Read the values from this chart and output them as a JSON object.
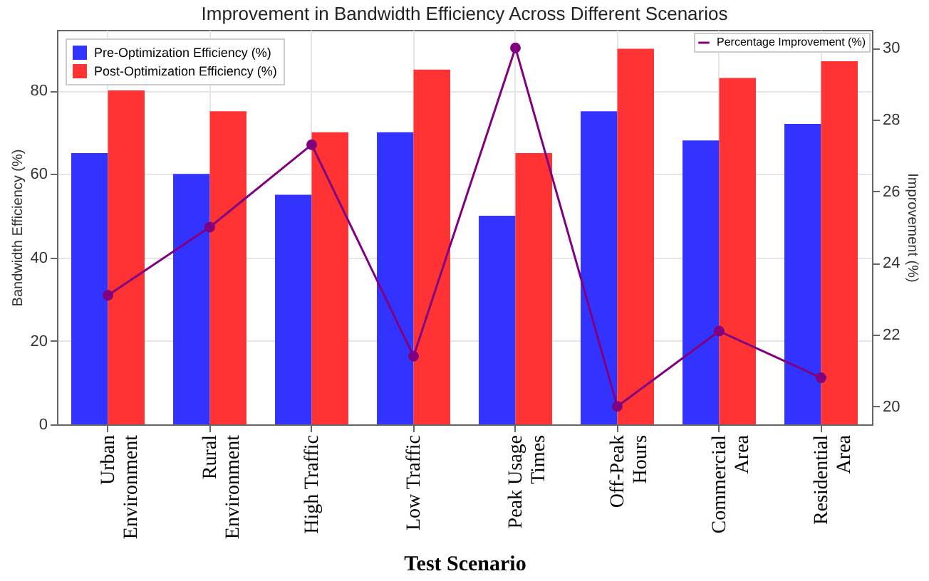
{
  "chart_data": {
    "type": "bar",
    "title": "Improvement in Bandwidth Efficiency Across Different Scenarios",
    "xlabel": "Test Scenario",
    "ylabel": "Bandwidth Efficiency (%)",
    "y2label": "Improvement (%)",
    "categories": [
      "Urban Environment",
      "Rural Environment",
      "High Traffic",
      "Low Traffic",
      "Peak Usage Times",
      "Off-Peak Hours",
      "Commercial Area",
      "Residential Area"
    ],
    "series": [
      {
        "name": "Pre-Optimization Efficiency (%)",
        "color": "#3333ff",
        "values": [
          65,
          60,
          55,
          70,
          50,
          75,
          68,
          72
        ]
      },
      {
        "name": "Post-Optimization Efficiency (%)",
        "color": "#ff3333",
        "values": [
          80,
          75,
          70,
          85,
          65,
          90,
          83,
          87
        ]
      },
      {
        "name": "Percentage Improvement (%)",
        "type": "line",
        "axis": "y2",
        "color": "#800080",
        "values": [
          23.1,
          25.0,
          27.3,
          21.4,
          30.0,
          20.0,
          22.1,
          20.8
        ]
      }
    ],
    "ylim": [
      0,
      94.5
    ],
    "yticks": [
      0,
      20,
      40,
      60,
      80
    ],
    "y2lim": [
      19.5,
      30.5
    ],
    "y2ticks": [
      20,
      22,
      24,
      26,
      28,
      30
    ],
    "grid": true,
    "legend": "top left",
    "marker": "circle",
    "line_style": "solid"
  }
}
